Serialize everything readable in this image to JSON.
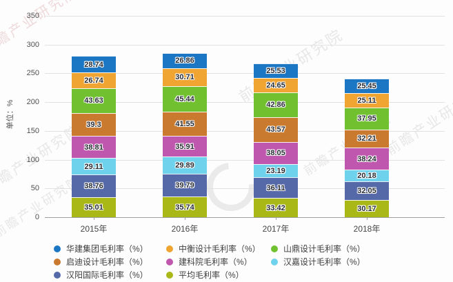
{
  "watermark": {
    "text": "前瞻产业研究院"
  },
  "chart_data": {
    "type": "bar",
    "stacked": true,
    "title": "",
    "xlabel": "",
    "ylabel": "单位：%",
    "ylim": [
      0,
      350
    ],
    "yticks": [
      0,
      50,
      100,
      150,
      200,
      250,
      300,
      350
    ],
    "grid": true,
    "legend_position": "bottom",
    "value_labels": true,
    "stack_note": "series listed in legend order; bars stack with first series on top",
    "categories": [
      "2015年",
      "2016年",
      "2017年",
      "2018年"
    ],
    "series": [
      {
        "name": "华建集团毛利率（%）",
        "color": "#1b76c3",
        "values": [
          28.74,
          26.86,
          25.53,
          25.45
        ]
      },
      {
        "name": "中衡设计毛利率（%）",
        "color": "#f0a432",
        "values": [
          26.74,
          30.71,
          24.65,
          25.11
        ]
      },
      {
        "name": "山鼎设计毛利率（%）",
        "color": "#70c02f",
        "values": [
          43.63,
          45.44,
          42.86,
          37.95
        ]
      },
      {
        "name": "启迪设计毛利率（%）",
        "color": "#ca7a2e",
        "values": [
          39.3,
          41.55,
          43.57,
          32.21
        ]
      },
      {
        "name": "建科院毛利率（%）",
        "color": "#bf57ae",
        "values": [
          38.81,
          35.91,
          38.05,
          38.24
        ]
      },
      {
        "name": "汉嘉设计毛利率（%）",
        "color": "#6fd2ec",
        "values": [
          29.11,
          29.89,
          23.19,
          20.18
        ]
      },
      {
        "name": "汉阳国际毛利率（%）",
        "color": "#5569a9",
        "values": [
          38.76,
          39.79,
          36.11,
          32.05
        ]
      },
      {
        "name": "平均毛利率（%）",
        "color": "#a9b717",
        "values": [
          35.01,
          35.74,
          33.42,
          30.17
        ]
      }
    ]
  }
}
